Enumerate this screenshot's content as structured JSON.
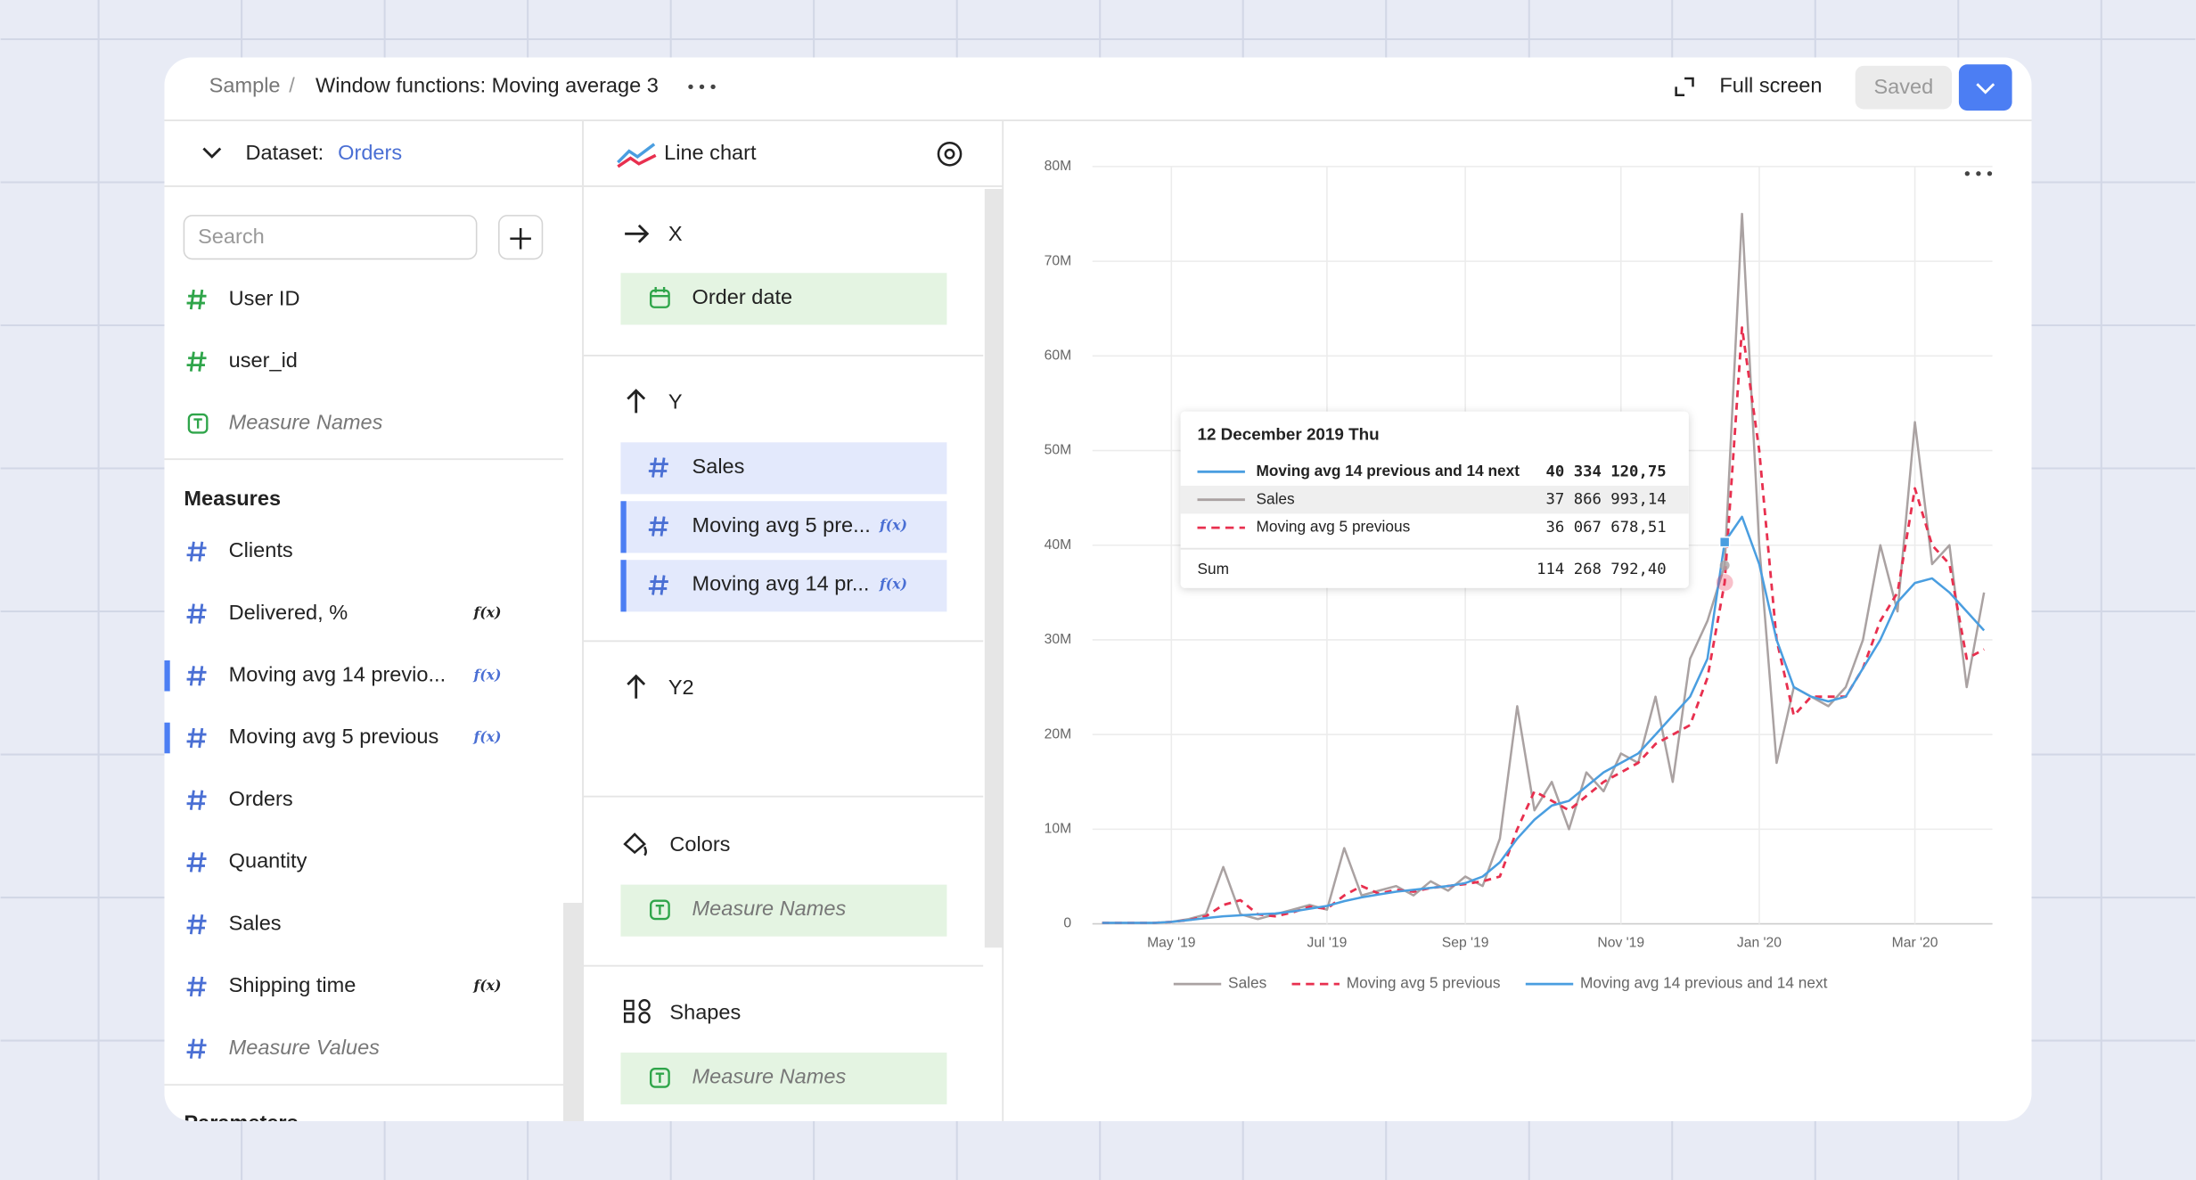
{
  "header": {
    "breadcrumb": [
      "Sample",
      "Window functions: Moving average 3"
    ],
    "separator": "/",
    "full_screen": "Full screen",
    "saved": "Saved"
  },
  "dataset": {
    "label": "Dataset:",
    "name": "Orders",
    "search_placeholder": "Search",
    "dimensions": [
      {
        "label": "User ID",
        "kind": "number"
      },
      {
        "label": "user_id",
        "kind": "number"
      },
      {
        "label": "Measure Names",
        "kind": "text"
      }
    ],
    "measures_title": "Measures",
    "measures": [
      {
        "label": "Clients",
        "formula": false,
        "selected": false
      },
      {
        "label": "Delivered, %",
        "formula": true,
        "selected": false
      },
      {
        "label": "Moving avg 14 previo...",
        "formula": true,
        "selected": true
      },
      {
        "label": "Moving avg 5 previous",
        "formula": true,
        "selected": true
      },
      {
        "label": "Orders",
        "formula": false,
        "selected": false
      },
      {
        "label": "Quantity",
        "formula": false,
        "selected": false
      },
      {
        "label": "Sales",
        "formula": false,
        "selected": false
      },
      {
        "label": "Shipping time",
        "formula": true,
        "selected": false
      },
      {
        "label": "Measure Values",
        "formula": false,
        "selected": false,
        "virtual": true
      }
    ],
    "parameters_title": "Parameters"
  },
  "formula_badge": "f(x)",
  "visualization": {
    "type": "Line chart",
    "sections": [
      {
        "title": "X",
        "items": [
          {
            "label": "Order date",
            "kind": "date"
          }
        ]
      },
      {
        "title": "Y",
        "items": [
          {
            "label": "Sales",
            "kind": "number",
            "formula": false
          },
          {
            "label": "Moving avg 5 pre...",
            "kind": "number",
            "formula": true
          },
          {
            "label": "Moving avg 14 pr...",
            "kind": "number",
            "formula": true
          }
        ]
      },
      {
        "title": "Y2",
        "items": []
      },
      {
        "title": "Colors",
        "items": [
          {
            "label": "Measure Names",
            "kind": "text"
          }
        ]
      },
      {
        "title": "Shapes",
        "items": [
          {
            "label": "Measure Names",
            "kind": "text"
          }
        ]
      }
    ]
  },
  "chart_data": {
    "type": "line",
    "categories": [
      null,
      null,
      null,
      null,
      "May '19",
      null,
      null,
      null,
      null,
      null,
      null,
      null,
      null,
      "Jul '19",
      null,
      null,
      null,
      null,
      null,
      null,
      null,
      "Sep '19",
      null,
      null,
      null,
      null,
      null,
      null,
      null,
      null,
      "Nov '19",
      null,
      null,
      null,
      null,
      null,
      null,
      null,
      "Jan '20",
      null,
      null,
      null,
      null,
      null,
      null,
      null,
      null,
      "Mar '20",
      null,
      null,
      null,
      null
    ],
    "series": [
      {
        "name": "Sales",
        "color": "#aaa2a2",
        "line_style": "solid",
        "values": [
          100000,
          100000,
          100000,
          100000,
          200000,
          500000,
          1000000,
          6000000,
          1000000,
          500000,
          1000000,
          1500000,
          2000000,
          1500000,
          8000000,
          3000000,
          3500000,
          4000000,
          3000000,
          4500000,
          3500000,
          5000000,
          4000000,
          9000000,
          23000000,
          12000000,
          15000000,
          10000000,
          16000000,
          14000000,
          18000000,
          17000000,
          24000000,
          15000000,
          28000000,
          32000000,
          37866993.14,
          75000000,
          40000000,
          17000000,
          25000000,
          24000000,
          23000000,
          25000000,
          30000000,
          40000000,
          33000000,
          53000000,
          38000000,
          40000000,
          25000000,
          35000000
        ]
      },
      {
        "name": "Moving avg 5 previous",
        "color": "#e8304f",
        "line_style": "dashed",
        "values": [
          100000,
          100000,
          100000,
          100000,
          200000,
          400000,
          800000,
          2000000,
          2500000,
          1000000,
          800000,
          1200000,
          1800000,
          1600000,
          3000000,
          4000000,
          3200000,
          3600000,
          3400000,
          3800000,
          4000000,
          4200000,
          4500000,
          5000000,
          10000000,
          14000000,
          13000000,
          12000000,
          13500000,
          15000000,
          16000000,
          17000000,
          19000000,
          20000000,
          21000000,
          26000000,
          36067678.51,
          63000000,
          50000000,
          30000000,
          22000000,
          24000000,
          24000000,
          24000000,
          27000000,
          32000000,
          35000000,
          46000000,
          40000000,
          38000000,
          28000000,
          29000000
        ]
      },
      {
        "name": "Moving avg 14 previous and 14 next",
        "color": "#4a9ee0",
        "line_style": "solid",
        "values": [
          100000,
          100000,
          100000,
          100000,
          200000,
          400000,
          600000,
          800000,
          900000,
          1000000,
          1100000,
          1300000,
          1600000,
          1900000,
          2400000,
          2800000,
          3100000,
          3400000,
          3600000,
          3800000,
          4000000,
          4300000,
          5000000,
          6500000,
          9000000,
          11000000,
          12500000,
          13000000,
          14500000,
          16000000,
          17000000,
          18000000,
          20000000,
          22000000,
          24000000,
          28000000,
          40334120.75,
          43000000,
          38000000,
          30000000,
          25000000,
          24000000,
          23500000,
          24000000,
          27000000,
          30000000,
          34000000,
          36000000,
          36500000,
          35000000,
          33000000,
          31000000
        ]
      }
    ],
    "ylim": [
      0,
      80000000
    ],
    "yticks": [
      0,
      {
        "value": 10000000,
        "label": "10M"
      },
      {
        "value": 20000000,
        "label": "20M"
      },
      {
        "value": 30000000,
        "label": "30M"
      },
      {
        "value": 40000000,
        "label": "40M"
      },
      {
        "value": 50000000,
        "label": "50M"
      },
      {
        "value": 60000000,
        "label": "60M"
      },
      {
        "value": 70000000,
        "label": "70M"
      },
      {
        "value": 80000000,
        "label": "80M"
      }
    ],
    "grid": true,
    "legend": "bottom",
    "tooltip": {
      "title": "12 December 2019 Thu",
      "index": 36,
      "rows": [
        {
          "series": 2,
          "name": "Moving avg 14 previous and 14 next",
          "value": "40 334 120,75",
          "bold": true
        },
        {
          "series": 0,
          "name": "Sales",
          "value": "37 866 993,14",
          "highlight": true
        },
        {
          "series": 1,
          "name": "Moving avg 5 previous",
          "value": "36 067 678,51"
        }
      ],
      "sum_label": "Sum",
      "sum_value": "114 268 792,40"
    }
  }
}
